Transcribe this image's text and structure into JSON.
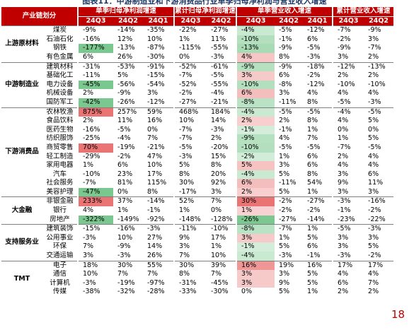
{
  "title": "图表11：中游制造业和下游消费品行业单季归母净利润与营业收入增速",
  "header": {
    "group_col": "产业链划分",
    "groups": [
      {
        "label": "单季归母净利润增速",
        "subs": [
          "24Q3",
          "24Q2",
          "24Q1"
        ]
      },
      {
        "label": "累计归母净利润增速",
        "subs": [
          "24Q3",
          "24Q2"
        ]
      },
      {
        "label": "单季营业收入增速",
        "subs": [
          "24Q3",
          "24Q2",
          "24Q1"
        ]
      },
      {
        "label": "累计营业收入增速",
        "subs": [
          "24Q3",
          "24Q2"
        ]
      }
    ]
  },
  "sections": [
    {
      "name": "上游原材料",
      "rows": [
        {
          "name": "煤炭",
          "values": [
            "-9%",
            "-14%",
            "-35%",
            "-22%",
            "-27%",
            "-4%",
            "-5%",
            "-12%",
            "-7%",
            "-9%"
          ]
        },
        {
          "name": "石油石化",
          "values": [
            "-16%",
            "12%",
            "10%",
            "1%",
            "11%",
            "-10%",
            "-1%",
            "6%",
            "-2%",
            "3%"
          ]
        },
        {
          "name": "钢铁",
          "values": [
            "-177%",
            "-13%",
            "-87%",
            "-115%",
            "-55%",
            "-13%",
            "-9%",
            "-5%",
            "-9%",
            "-7%"
          ]
        },
        {
          "name": "有色金属",
          "values": [
            "6%",
            "26%",
            "-30%",
            "0%",
            "-3%",
            "4%",
            "8%",
            "-3%",
            "3%",
            "2%"
          ]
        }
      ]
    },
    {
      "name": "中游制造业",
      "rows": [
        {
          "name": "建筑材料",
          "values": [
            "-31%",
            "-53%",
            "-91%",
            "-52%",
            "-61%",
            "-9%",
            "-9%",
            "-18%",
            "-12%",
            "-13%"
          ]
        },
        {
          "name": "基础化工",
          "values": [
            "-11%",
            "5%",
            "-15%",
            "-7%",
            "-5%",
            "3%",
            "6%",
            "-2%",
            "2%",
            "2%"
          ]
        },
        {
          "name": "电力设备",
          "values": [
            "-45%",
            "-56%",
            "-54%",
            "-52%",
            "-55%",
            "-10%",
            "-8%",
            "-12%",
            "-10%",
            "-10%"
          ]
        },
        {
          "name": "机械设备",
          "values": [
            "2%",
            "-9%",
            "3%",
            "-2%",
            "-4%",
            "6%",
            "3%",
            "4%",
            "4%",
            "4%"
          ]
        },
        {
          "name": "国防军工",
          "values": [
            "-42%",
            "-26%",
            "-12%",
            "-27%",
            "-21%",
            "-8%",
            "-11%",
            "8%",
            "-5%",
            "-3%"
          ]
        }
      ]
    },
    {
      "name": "下游消费品",
      "rows": [
        {
          "name": "农林牧渔",
          "values": [
            "875%",
            "257%",
            "59%",
            "468%",
            "184%",
            "-4%",
            "-5%",
            "-5%",
            "-4%",
            "-5%"
          ]
        },
        {
          "name": "食品饮料",
          "values": [
            "2%",
            "11%",
            "16%",
            "10%",
            "14%",
            "2%",
            "2%",
            "8%",
            "4%",
            "5%"
          ]
        },
        {
          "name": "医药生物",
          "values": [
            "-16%",
            "-5%",
            "0%",
            "-7%",
            "-3%",
            "-1%",
            "-1%",
            "1%",
            "0%",
            "0%"
          ]
        },
        {
          "name": "纺织服饰",
          "values": [
            "-25%",
            "-4%",
            "7%",
            "-7%",
            "2%",
            "-9%",
            "4%",
            "7%",
            "1%",
            "5%"
          ]
        },
        {
          "name": "商贸零售",
          "values": [
            "70%",
            "-19%",
            "-21%",
            "-5%",
            "-20%",
            "-10%",
            "-5%",
            "-5%",
            "-7%",
            "-5%"
          ]
        },
        {
          "name": "轻工制造",
          "values": [
            "-29%",
            "-2%",
            "47%",
            "-3%",
            "15%",
            "-2%",
            "1%",
            "6%",
            "2%",
            "4%"
          ]
        },
        {
          "name": "家用电器",
          "values": [
            "1%",
            "6%",
            "10%",
            "5%",
            "8%",
            "5%",
            "3%",
            "6%",
            "4%",
            "4%"
          ]
        },
        {
          "name": "汽车",
          "values": [
            "-10%",
            "23%",
            "17%",
            "8%",
            "20%",
            "-4%",
            "5%",
            "8%",
            "3%",
            "6%"
          ]
        },
        {
          "name": "社会服务",
          "values": [
            "-7%",
            "81%",
            "115%",
            "30%",
            "92%",
            "6%",
            "-11%",
            "54%",
            "9%",
            "11%"
          ]
        },
        {
          "name": "美容护理",
          "values": [
            "-47%",
            "0%",
            "8%",
            "-17%",
            "3%",
            "2%",
            "5%",
            "1%",
            "3%",
            "3%"
          ]
        }
      ]
    },
    {
      "name": "大金融",
      "rows": [
        {
          "name": "非银金融",
          "values": [
            "233%",
            "37%",
            "-14%",
            "52%",
            "7%",
            "30%",
            "-2%",
            "-27%",
            "-3%",
            "-16%"
          ]
        },
        {
          "name": "银行",
          "values": [
            "4%",
            "1%",
            "-1%",
            "1%",
            "0%",
            "1%",
            "-2%",
            "-2%",
            "-1%",
            "-2%"
          ]
        },
        {
          "name": "房地产",
          "values": [
            "-322%",
            "-149%",
            "-92%",
            "-148%",
            "-128%",
            "-26%",
            "-27%",
            "-14%",
            "-23%",
            "-22%"
          ]
        }
      ]
    },
    {
      "name": "支持服务业",
      "rows": [
        {
          "name": "建筑装饰",
          "values": [
            "-15%",
            "-16%",
            "-3%",
            "-11%",
            "-10%",
            "-8%",
            "-7%",
            "1%",
            "-5%",
            "-3%"
          ]
        },
        {
          "name": "公用事业",
          "values": [
            "-3%",
            "10%",
            "27%",
            "9%",
            "17%",
            "3%",
            "1%",
            "5%",
            "3%",
            "3%"
          ]
        },
        {
          "name": "环保",
          "values": [
            "7%",
            "-9%",
            "14%",
            "3%",
            "1%",
            "-1%",
            "5%",
            "6%",
            "3%",
            "5%"
          ]
        },
        {
          "name": "交通运输",
          "values": [
            "3%",
            "-3%",
            "26%",
            "7%",
            "10%",
            "-4%",
            "-3%",
            "-1%",
            "-3%",
            "-2%"
          ]
        }
      ]
    },
    {
      "name": "TMT",
      "rows": [
        {
          "name": "电子",
          "values": [
            "18%",
            "30%",
            "55%",
            "30%",
            "39%",
            "16%",
            "19%",
            "16%",
            "17%",
            "17%"
          ]
        },
        {
          "name": "通信",
          "values": [
            "10%",
            "7%",
            "7%",
            "8%",
            "7%",
            "3%",
            "3%",
            "5%",
            "4%",
            "4%"
          ]
        },
        {
          "name": "计算机",
          "values": [
            "-3%",
            "-19%",
            "-97%",
            "-31%",
            "-45%",
            "3%",
            "9%",
            "5%",
            "6%",
            "7%"
          ]
        },
        {
          "name": "传媒",
          "values": [
            "-38%",
            "-32%",
            "-28%",
            "-33%",
            "-30%",
            "0%",
            "5%",
            "1%",
            "2%",
            "2%"
          ]
        }
      ]
    }
  ],
  "page_number": "18"
}
